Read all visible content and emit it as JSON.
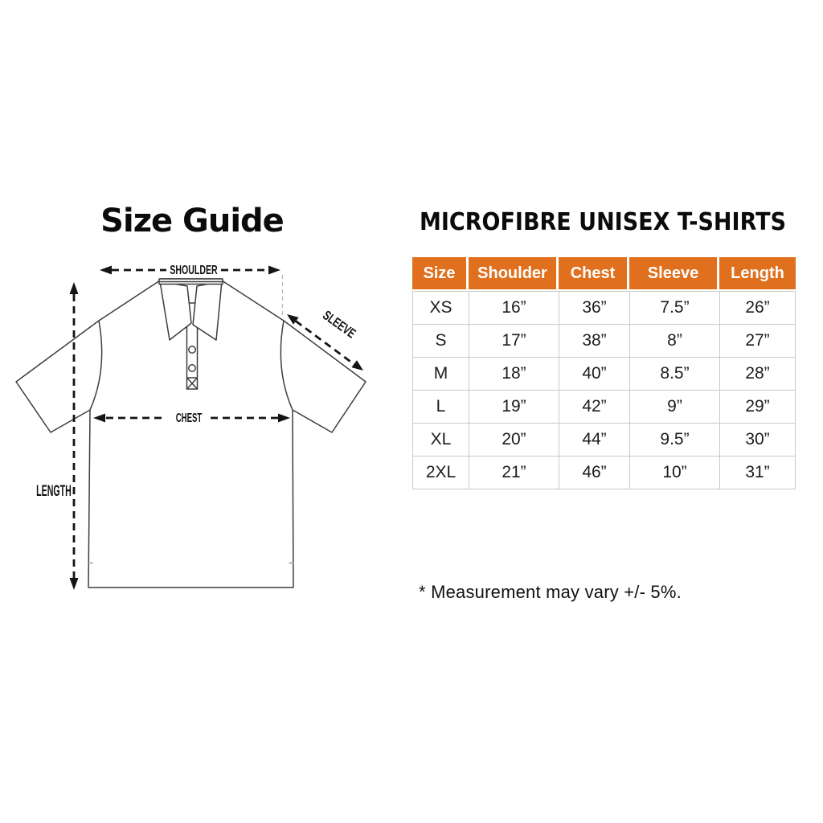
{
  "left_panel": {
    "title": "Size Guide",
    "diagram_labels": {
      "shoulder": "SHOULDER",
      "sleeve": "SLEEVE",
      "chest": "CHEST",
      "length": "LENGTH"
    }
  },
  "right_panel": {
    "title": "MICROFIBRE UNISEX T-SHIRTS",
    "table": {
      "headers": [
        "Size",
        "Shoulder",
        "Chest",
        "Sleeve",
        "Length"
      ],
      "rows": [
        [
          "XS",
          "16”",
          "36”",
          "7.5”",
          "26”"
        ],
        [
          "S",
          "17”",
          "38”",
          "8”",
          "27”"
        ],
        [
          "M",
          "18”",
          "40”",
          "8.5”",
          "28”"
        ],
        [
          "L",
          "19”",
          "42”",
          "9”",
          "29”"
        ],
        [
          "XL",
          "20”",
          "44”",
          "9.5”",
          "30”"
        ],
        [
          "2XL",
          "21”",
          "46”",
          "10”",
          "31”"
        ]
      ]
    },
    "footnote": "* Measurement may vary +/- 5%."
  },
  "colors": {
    "header_bg": "#E0701E",
    "header_text": "#FFFFFF",
    "table_border": "#C9C9C9",
    "shirt_line": "#3D3D3D",
    "arrow": "#141414",
    "background": "#FFFFFF"
  }
}
